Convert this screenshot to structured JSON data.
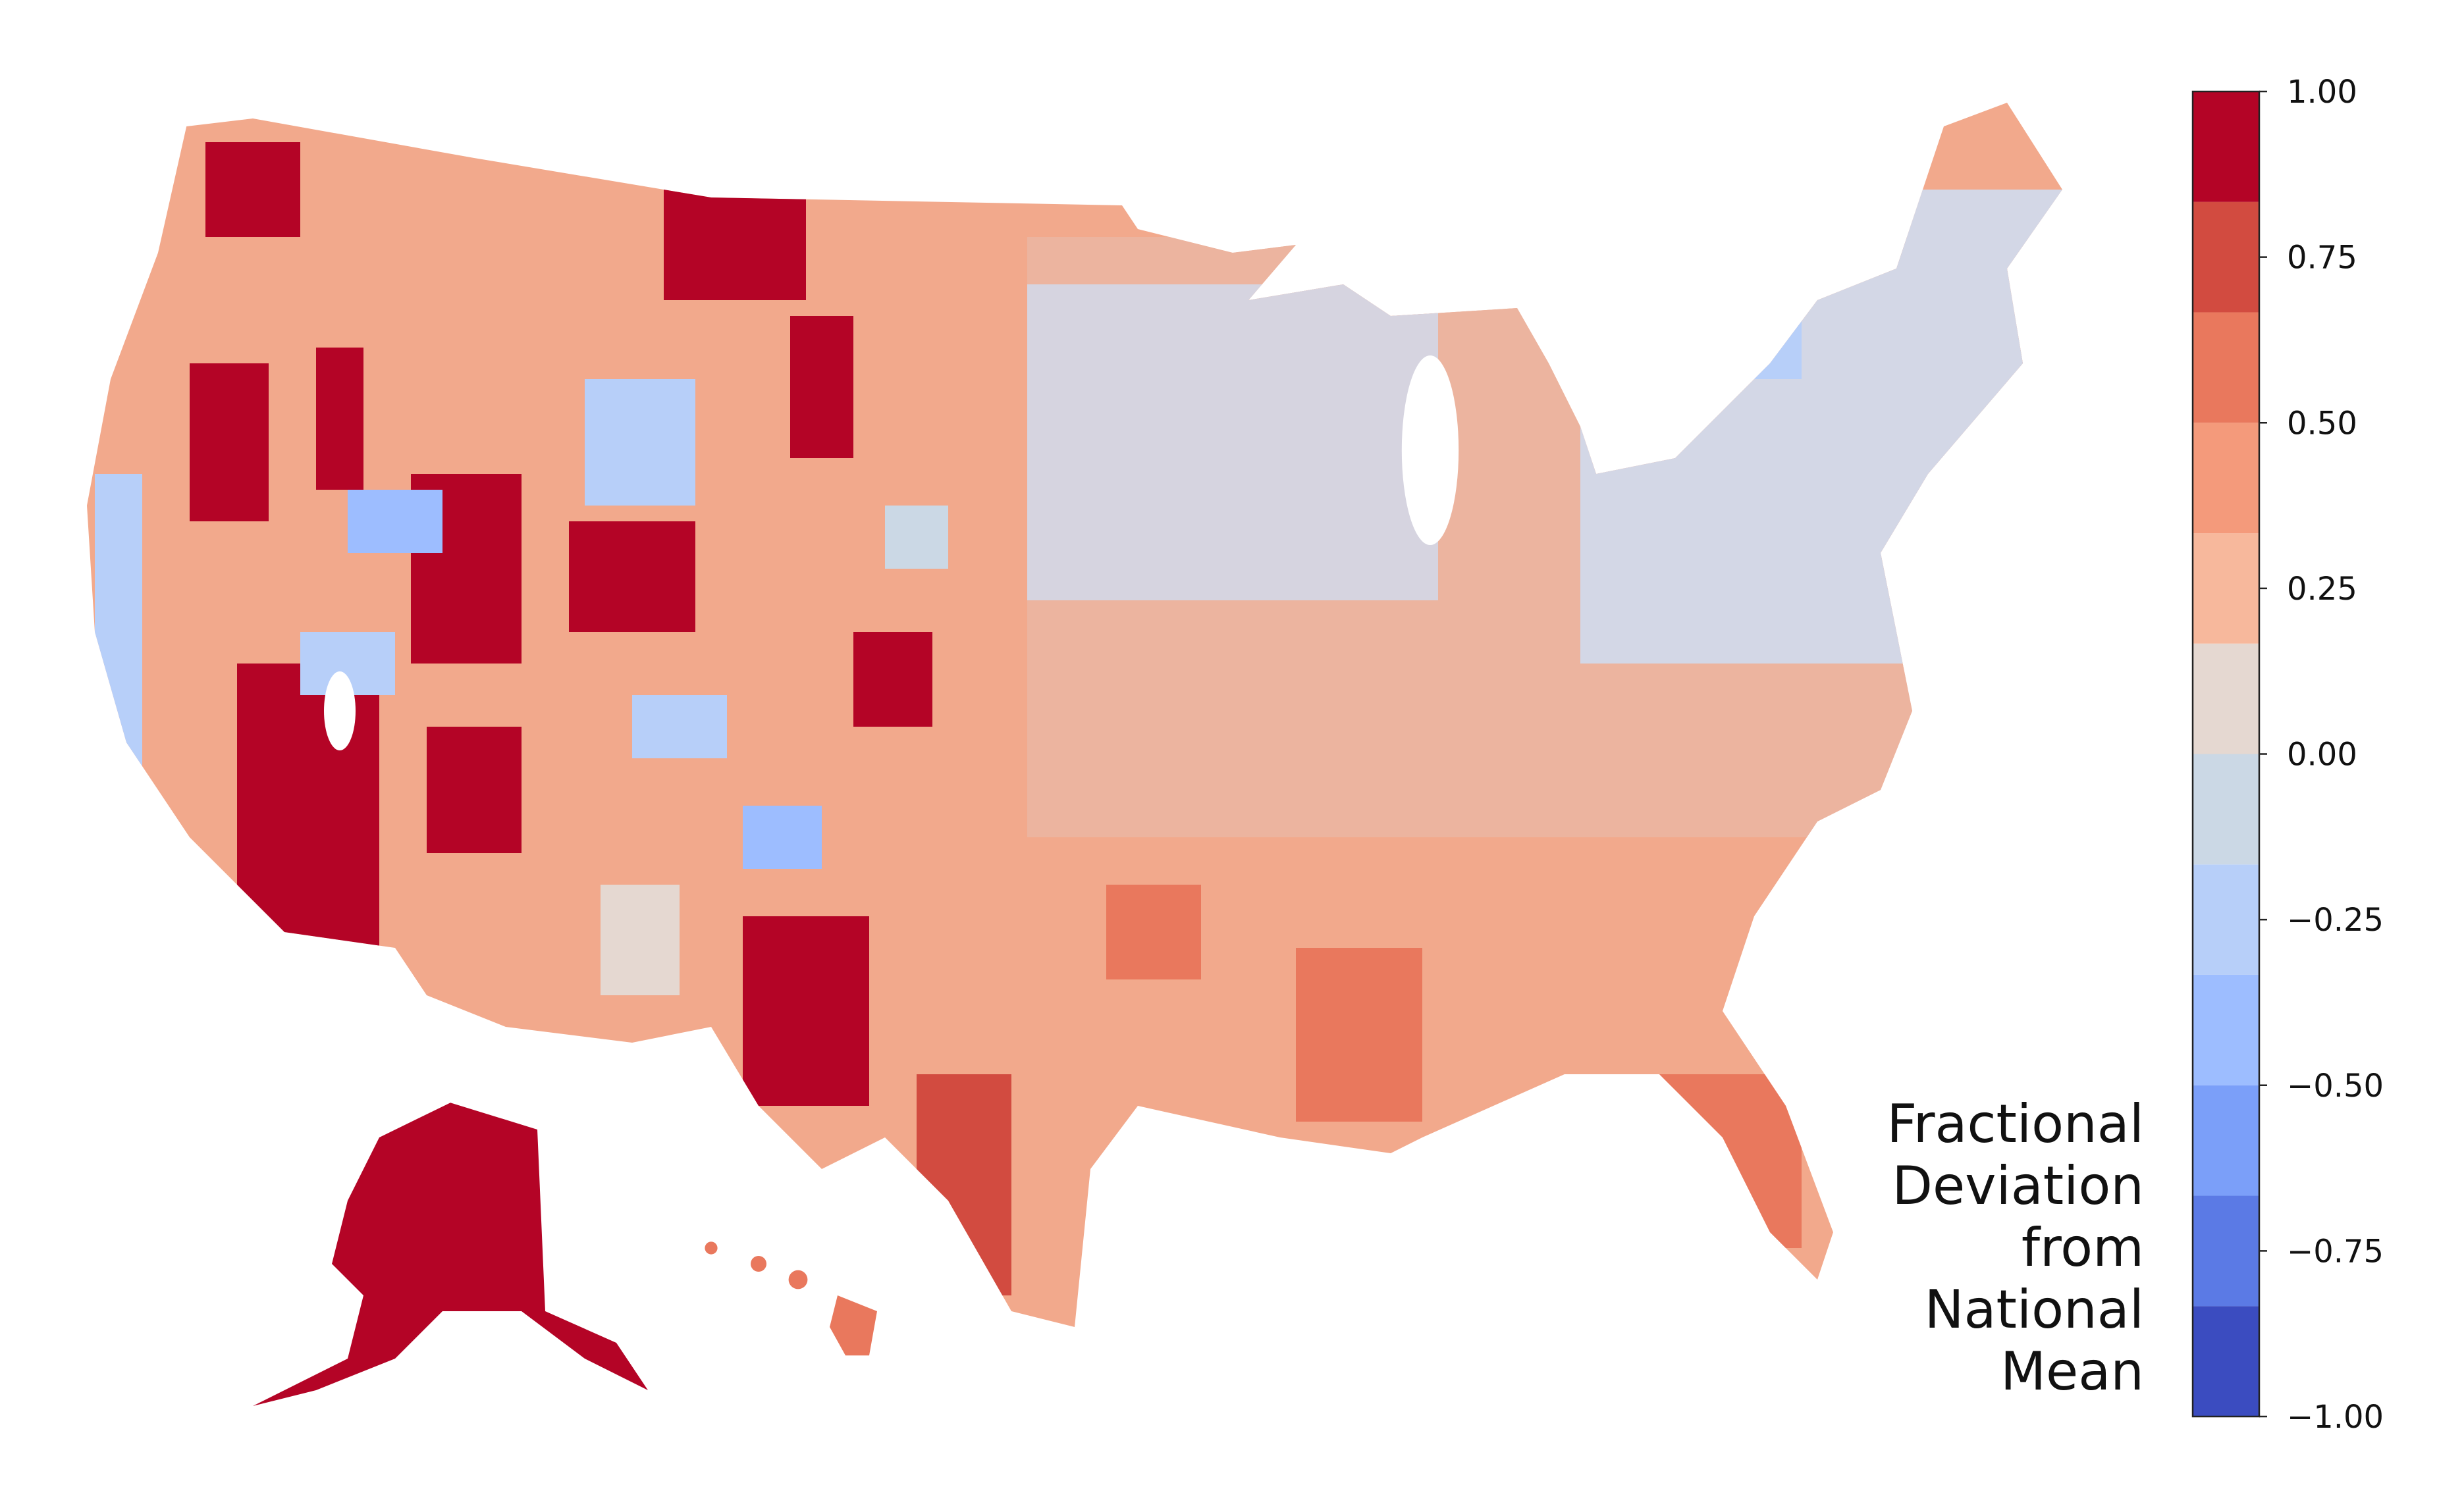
{
  "legend_title": [
    "Fractional",
    "Deviation",
    "from",
    "National",
    "Mean"
  ],
  "colorbar": {
    "lim": [
      -1,
      1
    ],
    "boundaries": [
      -1,
      -0.8333,
      -0.6667,
      -0.5,
      -0.3333,
      -0.1667,
      0,
      0.1667,
      0.3333,
      0.5,
      0.6667,
      0.8333,
      1
    ],
    "colors": [
      "#3b4cc0",
      "#5b7ae5",
      "#7b9ff9",
      "#9dbdff",
      "#b7cff9",
      "#cbd8e5",
      "#e5d8d1",
      "#f7b89c",
      "#f49a7b",
      "#e9785d",
      "#d24b40",
      "#b40426"
    ],
    "ticks": [
      {
        "value": -1,
        "label": "−1.00"
      },
      {
        "value": -0.75,
        "label": "−0.75"
      },
      {
        "value": -0.5,
        "label": "−0.50"
      },
      {
        "value": -0.25,
        "label": "−0.25"
      },
      {
        "value": 0,
        "label": "0.00"
      },
      {
        "value": 0.25,
        "label": "0.25"
      },
      {
        "value": 0.5,
        "label": "0.50"
      },
      {
        "value": 0.75,
        "label": "0.75"
      },
      {
        "value": 1,
        "label": "1.00"
      }
    ]
  }
}
